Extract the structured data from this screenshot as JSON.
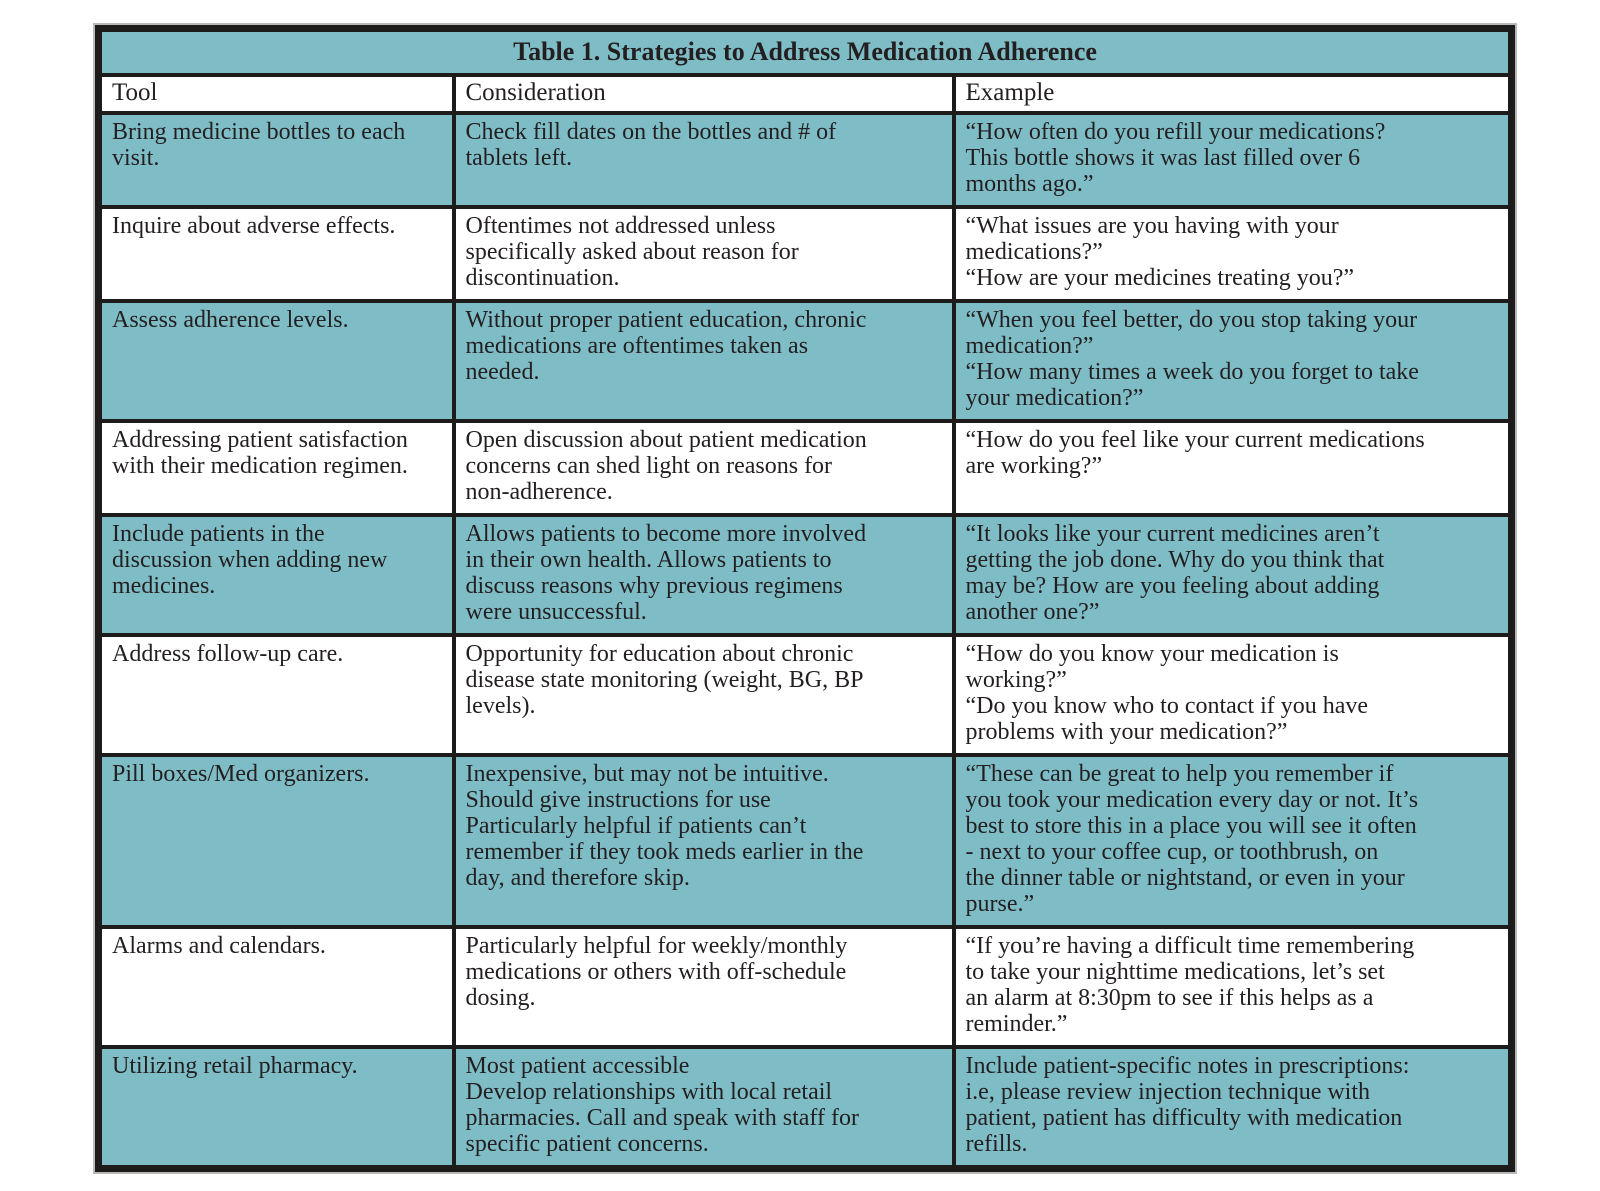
{
  "colors": {
    "accent_teal": "#7fbdc6",
    "border_black": "#1d1c1a",
    "text_black": "#231f20",
    "page_white": "#ffffff"
  },
  "table": {
    "title": "Table 1. Strategies to Address Medication Adherence",
    "columns": [
      "Tool",
      "Consideration",
      "Example"
    ],
    "rows": [
      {
        "tool": "Bring medicine bottles to each\nvisit.",
        "consideration": "Check fill dates on the bottles and # of\ntablets left.",
        "example": "“How often do you refill your medications?\nThis bottle shows it was last filled over 6\nmonths ago.”"
      },
      {
        "tool": "Inquire about adverse effects.",
        "consideration": "Oftentimes not addressed unless\nspecifically asked about reason for\ndiscontinuation.",
        "example": "“What issues are you having with your\nmedications?”\n“How are your medicines treating you?”"
      },
      {
        "tool": "Assess adherence levels.",
        "consideration": "Without proper patient education, chronic\nmedications are oftentimes taken as\nneeded.",
        "example": "“When you feel better, do you stop taking your\nmedication?”\n“How many times a week do you forget to take\nyour medication?”"
      },
      {
        "tool": "Addressing patient satisfaction\nwith their medication regimen.",
        "consideration": "Open discussion about patient medication\nconcerns can shed light on reasons for\nnon-adherence.",
        "example": "“How do you feel like your current medications\nare working?”"
      },
      {
        "tool": "Include patients in the\ndiscussion when adding new\nmedicines.",
        "consideration": "Allows patients to become more involved\nin their own health. Allows patients to\ndiscuss reasons why previous regimens\nwere unsuccessful.",
        "example": "“It looks like your current medicines aren’t\ngetting the job done. Why do you think that\nmay be? How are you feeling about adding\nanother one?”"
      },
      {
        "tool": "Address follow-up care.",
        "consideration": "Opportunity for education about chronic\ndisease state monitoring (weight, BG, BP\nlevels).",
        "example": "“How do you know your medication is\nworking?”\n“Do you know who to contact if you have\nproblems with your medication?”"
      },
      {
        "tool": "Pill boxes/Med organizers.",
        "consideration": "Inexpensive, but may not be intuitive.\nShould give instructions for use\nParticularly helpful if patients can’t\nremember if they took meds earlier in the\nday, and therefore skip.",
        "example": "“These can be great to help you remember if\nyou took your medication every day or not. It’s\nbest to store this in a place you will see it often\n- next to your coffee cup, or toothbrush, on\nthe dinner table or nightstand, or even in your\npurse.”"
      },
      {
        "tool": "Alarms and calendars.",
        "consideration": "Particularly helpful for weekly/monthly\nmedications or others with off-schedule\ndosing.",
        "example": "“If you’re having a difficult time remembering\nto take your nighttime medications, let’s set\nan alarm at 8:30pm to see if this helps as a\nreminder.”"
      },
      {
        "tool": "Utilizing retail pharmacy.",
        "consideration": "Most patient accessible\nDevelop relationships with local retail\npharmacies. Call and speak with staff for\nspecific patient concerns.",
        "example": "Include patient-specific notes in prescriptions:\ni.e, please review injection technique with\npatient, patient has difficulty with medication\nrefills."
      }
    ]
  }
}
